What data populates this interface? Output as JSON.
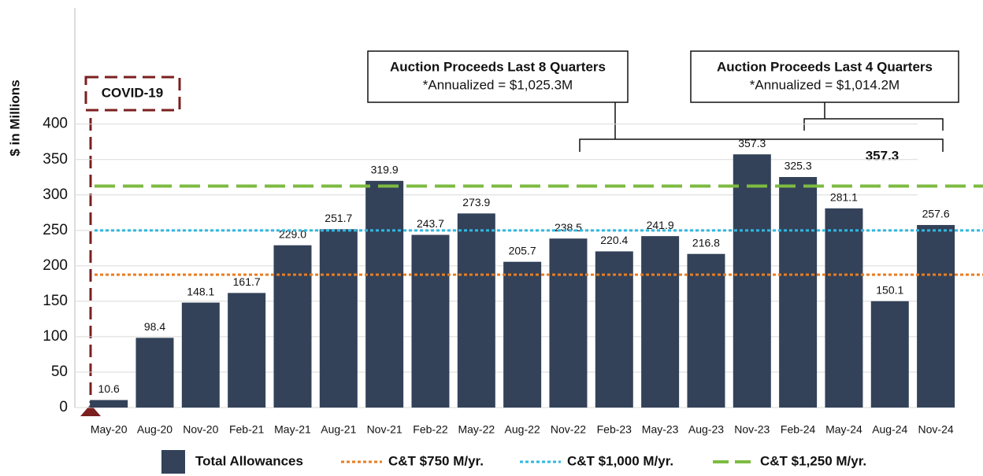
{
  "chart_data": {
    "type": "bar",
    "y_label": "$ in Millions",
    "categories": [
      "May-20",
      "Aug-20",
      "Nov-20",
      "Feb-21",
      "May-21",
      "Aug-21",
      "Nov-21",
      "Feb-22",
      "May-22",
      "Aug-22",
      "Nov-22",
      "Feb-23",
      "May-23",
      "Aug-23",
      "Nov-23",
      "Feb-24",
      "May-24",
      "Aug-24",
      "Nov-24"
    ],
    "series": [
      {
        "name": "Total Allowances",
        "color": "#334259",
        "values": [
          10.6,
          98.4,
          148.1,
          161.7,
          229.0,
          251.7,
          319.9,
          243.7,
          273.9,
          205.7,
          238.5,
          220.4,
          241.9,
          216.8,
          357.3,
          325.3,
          281.1,
          150.1,
          257.6
        ],
        "value_labels": [
          "10.6",
          "98.4",
          "148.1",
          "161.7",
          "229.0",
          "251.7",
          "319.9",
          "243.7",
          "273.9",
          "205.7",
          "238.5",
          "220.4",
          "241.9",
          "216.8",
          "357.3",
          "325.3",
          "281.1",
          "150.1",
          "257.6"
        ]
      }
    ],
    "reference_lines": [
      {
        "name": "C&T $750 M/yr.",
        "value": 187.5,
        "color": "#e87d22",
        "style": "dotted"
      },
      {
        "name": "C&T $1,000 M/yr.",
        "value": 250,
        "color": "#2fb8e0",
        "style": "dotted"
      },
      {
        "name": "C&T $1,250 M/yr.",
        "value": 312.5,
        "color": "#7dbb42",
        "style": "dashed"
      }
    ],
    "ylim": [
      0,
      564
    ],
    "yticks": [
      0,
      50,
      100,
      150,
      200,
      250,
      300,
      350,
      400
    ],
    "grid": true,
    "annotations": {
      "covid": "COVID-19",
      "last8_title": "Auction Proceeds Last 8 Quarters",
      "last8_sub": "*Annualized = $1,025.3M",
      "last4_title": "Auction Proceeds Last 4 Quarters",
      "last4_sub": "*Annualized = $1,014.2M",
      "highlight": "357.3"
    }
  }
}
